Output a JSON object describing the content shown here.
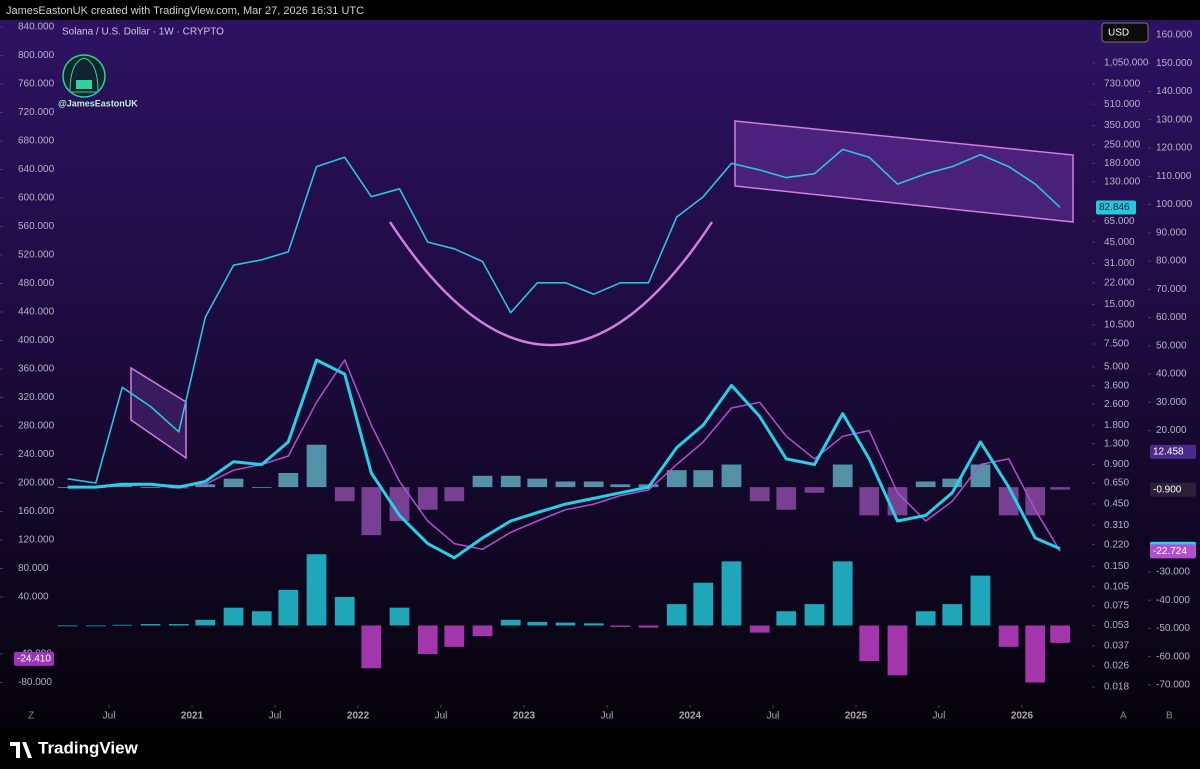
{
  "header": "JamesEastonUK created with TradingView.com, Mar 27, 2026 16:31 UTC",
  "watermark": "@JamesEastonUK",
  "footer_logo": "TradingView",
  "currency": "USD",
  "bottom_buttons": [
    "Z",
    "A",
    "B"
  ],
  "chart_data": {
    "type": "line",
    "title": "Solana / U.S. Dollar · 1W · CRYPTO",
    "x": [
      2020.25,
      2020.42,
      2020.58,
      2020.75,
      2020.92,
      2021.08,
      2021.25,
      2021.42,
      2021.58,
      2021.75,
      2021.92,
      2022.08,
      2022.25,
      2022.42,
      2022.58,
      2022.75,
      2022.92,
      2023.08,
      2023.25,
      2023.42,
      2023.58,
      2023.75,
      2023.92,
      2024.08,
      2024.25,
      2024.42,
      2024.58,
      2024.75,
      2024.92,
      2025.08,
      2025.25,
      2025.42,
      2025.58,
      2025.75,
      2025.92,
      2026.08,
      2026.23
    ],
    "xlim": [
      2019.843,
      2026.41
    ],
    "xticks": [
      {
        "value": 2020.5,
        "label": "Jul"
      },
      2021,
      {
        "value": 2021.5,
        "label": "Jul"
      },
      2022,
      {
        "value": 2022.5,
        "label": "Jul"
      },
      2023,
      {
        "value": 2023.5,
        "label": "Jul"
      },
      2024,
      {
        "value": 2024.5,
        "label": "Jul"
      },
      2025,
      {
        "value": 2025.5,
        "label": "Jul"
      },
      2026
    ],
    "ylim": [
      -111.6,
      849.8
    ],
    "yticks": [
      {
        "value": 840,
        "label": "840.000"
      },
      {
        "value": 800,
        "label": "800.000"
      },
      {
        "value": 760,
        "label": "760.000"
      },
      {
        "value": 720,
        "label": "720.000"
      },
      {
        "value": 680,
        "label": "680.000"
      },
      {
        "value": 640,
        "label": "640.000"
      },
      {
        "value": 600,
        "label": "600.000"
      },
      {
        "value": 560,
        "label": "560.000"
      },
      {
        "value": 520,
        "label": "520.000"
      },
      {
        "value": 480,
        "label": "480.000"
      },
      {
        "value": 440,
        "label": "440.000"
      },
      {
        "value": 400,
        "label": "400.000"
      },
      {
        "value": 360,
        "label": "360.000"
      },
      {
        "value": 320,
        "label": "320.000"
      },
      {
        "value": 280,
        "label": "280.000"
      },
      {
        "value": 240,
        "label": "240.000"
      },
      {
        "value": 200,
        "label": "200.000"
      },
      {
        "value": 160,
        "label": "160.000"
      },
      {
        "value": 120,
        "label": "120.000"
      },
      {
        "value": 80,
        "label": "80.000"
      },
      {
        "value": 40,
        "label": "40.000"
      },
      {
        "value": -40,
        "label": "-40.000"
      },
      {
        "value": -80,
        "label": "-80.000"
      }
    ],
    "y2lim": [
      -77.1,
      165.3
    ],
    "y2ticks": [
      {
        "value": 160,
        "label": "160.000"
      },
      {
        "value": 150,
        "label": "150.000"
      },
      {
        "value": 140,
        "label": "140.000"
      },
      {
        "value": 130,
        "label": "130.000"
      },
      {
        "value": 120,
        "label": "120.000"
      },
      {
        "value": 110,
        "label": "110.000"
      },
      {
        "value": 100,
        "label": "100.000"
      },
      {
        "value": 90,
        "label": "90.000"
      },
      {
        "value": 80,
        "label": "80.000"
      },
      {
        "value": 70,
        "label": "70.000"
      },
      {
        "value": 60,
        "label": "60.000"
      },
      {
        "value": 50,
        "label": "50.000"
      },
      {
        "value": 40,
        "label": "40.000"
      },
      {
        "value": 30,
        "label": "30.000"
      },
      {
        "value": 20,
        "label": "20.000"
      },
      {
        "value": -30,
        "label": "-30.000"
      },
      {
        "value": -40,
        "label": "-40.000"
      },
      {
        "value": -50,
        "label": "-50.000"
      },
      {
        "value": -60,
        "label": "-60.000"
      },
      {
        "value": -70,
        "label": "-70.000"
      }
    ],
    "y2_marker": 12.458,
    "y3lim": [
      0.0131,
      2240
    ],
    "y3scale": "log",
    "y3ticks": [
      {
        "value": 1050,
        "label": "1,050.000"
      },
      {
        "value": 730,
        "label": "730.000"
      },
      {
        "value": 510,
        "label": "510.000"
      },
      {
        "value": 350,
        "label": "350.000"
      },
      {
        "value": 250,
        "label": "250.000"
      },
      {
        "value": 180,
        "label": "180.000"
      },
      {
        "value": 130,
        "label": "130.000"
      },
      {
        "value": 65,
        "label": "65.000"
      },
      {
        "value": 45,
        "label": "45.000"
      },
      {
        "value": 31,
        "label": "31.000"
      },
      {
        "value": 22,
        "label": "22.000"
      },
      {
        "value": 15,
        "label": "15.000"
      },
      {
        "value": 10.5,
        "label": "10.500"
      },
      {
        "value": 7.5,
        "label": "7.500"
      },
      {
        "value": 5,
        "label": "5.000"
      },
      {
        "value": 3.6,
        "label": "3.600"
      },
      {
        "value": 2.6,
        "label": "2.600"
      },
      {
        "value": 1.8,
        "label": "1.800"
      },
      {
        "value": 1.3,
        "label": "1.300"
      },
      {
        "value": 0.9,
        "label": "0.900"
      },
      {
        "value": 0.65,
        "label": "0.650"
      },
      {
        "value": 0.45,
        "label": "0.450"
      },
      {
        "value": 0.31,
        "label": "0.310"
      },
      {
        "value": 0.22,
        "label": "0.220"
      },
      {
        "value": 0.15,
        "label": "0.150"
      },
      {
        "value": 0.105,
        "label": "0.105"
      },
      {
        "value": 0.075,
        "label": "0.075"
      },
      {
        "value": 0.053,
        "label": "0.053"
      },
      {
        "value": 0.037,
        "label": "0.037"
      },
      {
        "value": 0.026,
        "label": "0.026"
      },
      {
        "value": 0.018,
        "label": "0.018"
      }
    ],
    "series": [
      {
        "name": "Solana / U.S. Dollar · 1W · CRYPTO",
        "type": "line",
        "axis": "y3",
        "color": "#2bc4dc",
        "width": 1.6,
        "values": [
          0.7,
          0.65,
          3.5,
          2.5,
          1.6,
          12,
          30,
          33,
          38,
          170,
          200,
          100,
          115,
          45,
          40,
          32,
          13,
          22,
          22,
          18,
          22,
          22,
          70,
          100,
          180,
          160,
          140,
          150,
          230,
          200,
          125,
          150,
          170,
          210,
          170,
          125,
          82.846
        ]
      },
      {
        "type": "bar",
        "axis": "y2",
        "color": "#5fa9bd",
        "negative_color": "#8a4aa6",
        "values": [
          0,
          0,
          0.5,
          0,
          -0.5,
          1,
          3,
          0,
          5,
          15,
          -5,
          -17,
          -12,
          -8,
          -5,
          4,
          4,
          3,
          2,
          2,
          1,
          1,
          6,
          6,
          8,
          -5,
          -8,
          -2,
          8,
          -10,
          -10,
          2,
          3,
          8,
          -10,
          -10,
          -0.9
        ],
        "last_label": "-0.900"
      },
      {
        "type": "line",
        "axis": "y2",
        "color": "#26d0e6",
        "width": 3,
        "values": [
          0,
          0,
          1,
          1,
          0,
          2,
          9,
          8,
          16,
          45,
          40,
          5,
          -10,
          -20,
          -25,
          -18,
          -12,
          -9,
          -6,
          -4,
          -2,
          0,
          14,
          22,
          36,
          25,
          10,
          8,
          26,
          10,
          -12,
          -10,
          -2,
          16,
          0,
          -18,
          -21.824
        ]
      },
      {
        "type": "line",
        "axis": "y2",
        "color": "#b24fd0",
        "width": 1.5,
        "values": [
          0,
          0,
          0.5,
          1,
          0.5,
          1,
          6,
          8,
          11,
          30,
          45,
          22,
          2,
          -12,
          -20,
          -22,
          -16,
          -12,
          -8,
          -6,
          -3,
          -1,
          8,
          16,
          28,
          30,
          18,
          10,
          18,
          20,
          -2,
          -12,
          -5,
          8,
          10,
          -8,
          -22.724
        ]
      },
      {
        "type": "bar",
        "axis": "y",
        "color": "#22c3d6",
        "negative_color": "#c040c8",
        "values": [
          0,
          0,
          1,
          2,
          2,
          8,
          25,
          20,
          50,
          100,
          40,
          -60,
          25,
          -40,
          -30,
          -15,
          8,
          5,
          4,
          3,
          -2,
          -3,
          30,
          60,
          90,
          -10,
          20,
          30,
          90,
          -50,
          -70,
          20,
          30,
          70,
          -30,
          -80,
          -24.41
        ],
        "last_label": "-24.410"
      }
    ]
  }
}
